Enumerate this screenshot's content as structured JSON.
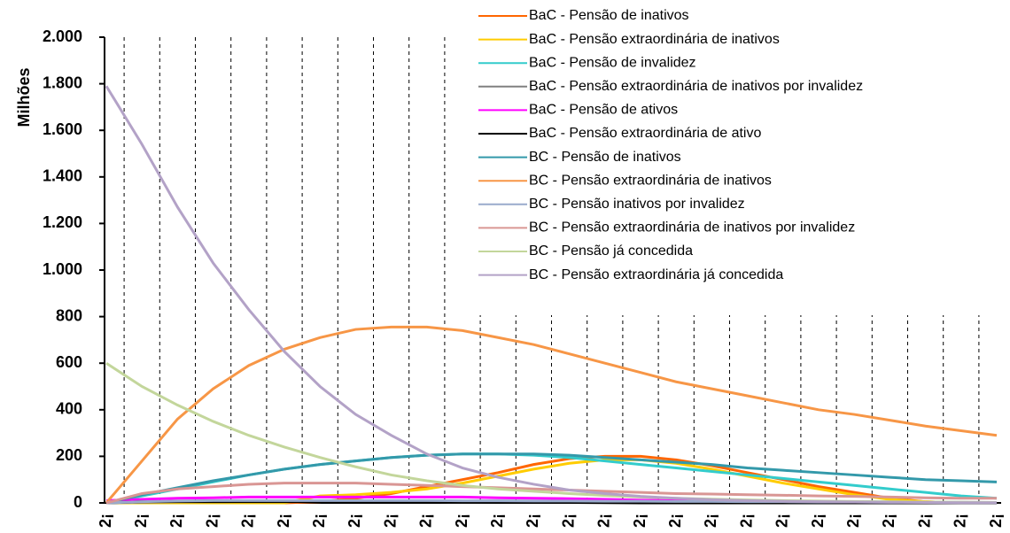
{
  "chart_data": {
    "type": "line",
    "y_label": "Milhões",
    "categories": [
      "2¡",
      "2¡",
      "2¡",
      "2¡",
      "2¡",
      "2¡",
      "2¡",
      "2¡",
      "2¡",
      "2¡",
      "2¡",
      "2¡",
      "2¡",
      "2¡",
      "2¡",
      "2¡",
      "2¡",
      "2¡",
      "2¡",
      "2¡",
      "2¡",
      "2¡",
      "2¡",
      "2¡",
      "2¡",
      "2¡"
    ],
    "ylim": [
      0,
      2000
    ],
    "yticks": [
      0,
      200,
      400,
      600,
      800,
      {
        "value": 1000,
        "label": "1.000"
      },
      {
        "value": 1200,
        "label": "1.200"
      },
      {
        "value": 1400,
        "label": "1.400"
      },
      {
        "value": 1600,
        "label": "1.600"
      },
      {
        "value": 1800,
        "label": "1.800"
      },
      {
        "value": 2000,
        "label": "2.000"
      }
    ],
    "series": [
      {
        "name": "BaC - Pensão de inativos",
        "color": "#ff6600",
        "values": [
          0,
          0,
          0,
          0,
          0,
          0,
          5,
          20,
          40,
          70,
          100,
          130,
          165,
          190,
          200,
          200,
          185,
          160,
          130,
          100,
          70,
          45,
          20,
          5,
          0,
          0
        ]
      },
      {
        "name": "BaC - Pensão extraordinária de inativos",
        "color": "#ffcc00",
        "values": [
          0,
          0,
          0,
          0,
          0,
          0,
          30,
          35,
          45,
          60,
          85,
          115,
          145,
          170,
          185,
          185,
          170,
          145,
          115,
          85,
          60,
          35,
          15,
          5,
          0,
          0
        ]
      },
      {
        "name": "BaC - Pensão de invalidez",
        "color": "#33cccc",
        "values": [
          0,
          30,
          60,
          90,
          120,
          145,
          165,
          180,
          195,
          205,
          210,
          210,
          205,
          195,
          180,
          165,
          150,
          135,
          120,
          105,
          90,
          75,
          60,
          45,
          30,
          20
        ]
      },
      {
        "name": "BaC - Pensão extraordinária de inativos por invalidez",
        "color": "#808080",
        "values": [
          0,
          3,
          5,
          5,
          6,
          6,
          6,
          6,
          6,
          6,
          5,
          5,
          5,
          4,
          4,
          3,
          3,
          3,
          2,
          2,
          2,
          1,
          1,
          1,
          1,
          1
        ]
      },
      {
        "name": "BaC - Pensão de ativos",
        "color": "#ff00ff",
        "values": [
          10,
          15,
          20,
          22,
          25,
          25,
          25,
          25,
          25,
          25,
          25,
          22,
          20,
          18,
          15,
          12,
          10,
          8,
          6,
          5,
          4,
          3,
          2,
          2,
          1,
          1
        ]
      },
      {
        "name": "BaC - Pensão extraordinária de ativo",
        "color": "#000000",
        "values": [
          0,
          5,
          5,
          5,
          5,
          5,
          5,
          5,
          5,
          5,
          5,
          4,
          3,
          2,
          1,
          0,
          0,
          0,
          0,
          0,
          0,
          0,
          0,
          0,
          0,
          0
        ]
      },
      {
        "name": "BC - Pensão de inativos",
        "color": "#3399aa",
        "values": [
          0,
          35,
          65,
          95,
          120,
          145,
          165,
          180,
          195,
          205,
          210,
          210,
          210,
          205,
          195,
          185,
          175,
          165,
          150,
          140,
          130,
          120,
          110,
          100,
          95,
          90
        ]
      },
      {
        "name": "BC - Pensão extraordinária de inativos",
        "color": "#f79646",
        "values": [
          0,
          180,
          360,
          490,
          590,
          660,
          710,
          745,
          755,
          755,
          740,
          710,
          680,
          640,
          600,
          560,
          520,
          490,
          460,
          430,
          400,
          380,
          355,
          330,
          310,
          290
        ]
      },
      {
        "name": "BC - Pensão inativos por invalidez",
        "color": "#99aacc",
        "values": [
          0,
          5,
          8,
          10,
          10,
          10,
          10,
          10,
          10,
          10,
          9,
          9,
          8,
          8,
          7,
          7,
          6,
          6,
          5,
          5,
          4,
          4,
          3,
          3,
          3,
          2
        ]
      },
      {
        "name": "BC - Pensão extraordinária de inativos por invalidez",
        "color": "#d99694",
        "values": [
          0,
          40,
          60,
          70,
          80,
          85,
          85,
          85,
          80,
          75,
          70,
          65,
          60,
          55,
          50,
          45,
          40,
          38,
          35,
          33,
          30,
          28,
          25,
          22,
          20,
          20
        ]
      },
      {
        "name": "BC - Pensão já concedida",
        "color": "#c3d69b",
        "values": [
          600,
          500,
          420,
          350,
          290,
          240,
          195,
          155,
          120,
          95,
          75,
          60,
          50,
          40,
          32,
          25,
          20,
          16,
          13,
          10,
          8,
          6,
          5,
          4,
          3,
          2
        ]
      },
      {
        "name": "BC - Pensão extraordinária já concedida",
        "color": "#b3a2c7",
        "values": [
          1790,
          1540,
          1270,
          1030,
          830,
          650,
          500,
          380,
          290,
          210,
          150,
          110,
          80,
          55,
          40,
          28,
          20,
          14,
          10,
          7,
          5,
          4,
          3,
          2,
          1,
          1
        ]
      }
    ]
  }
}
